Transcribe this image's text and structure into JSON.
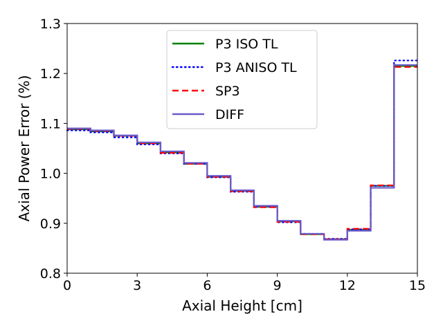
{
  "chart_data": {
    "type": "line",
    "step": true,
    "xlabel": "Axial Height [cm]",
    "ylabel": "Axial Power Error (%)",
    "xlim": [
      0,
      15
    ],
    "ylim": [
      0.8,
      1.3
    ],
    "xticks": [
      0,
      3,
      6,
      9,
      12,
      15
    ],
    "xtick_labels": [
      "0",
      "3",
      "6",
      "9",
      "12",
      "15"
    ],
    "yticks": [
      0.8,
      0.9,
      1.0,
      1.1,
      1.2,
      1.3
    ],
    "ytick_labels": [
      "0.8",
      "0.9",
      "1.0",
      "1.1",
      "1.2",
      "1.3"
    ],
    "grid": false,
    "legend_position": "top-center",
    "x_edges": [
      0,
      1,
      2,
      3,
      4,
      5,
      6,
      7,
      8,
      9,
      10,
      11,
      12,
      13,
      14,
      15
    ],
    "series": [
      {
        "name": "P3 ISO TL",
        "color": "#008000",
        "dash": "solid",
        "values": [
          1.088,
          1.084,
          1.075,
          1.06,
          1.042,
          1.019,
          0.993,
          0.965,
          0.933,
          0.904,
          0.878,
          0.868,
          0.887,
          0.975,
          1.215
        ]
      },
      {
        "name": "P3 ANISO TL",
        "color": "#0000ff",
        "dash": "dotted",
        "values": [
          1.086,
          1.082,
          1.072,
          1.058,
          1.04,
          1.019,
          0.992,
          0.963,
          0.933,
          0.902,
          0.879,
          0.869,
          0.888,
          0.975,
          1.226
        ]
      },
      {
        "name": "SP3",
        "color": "#ff0000",
        "dash": "dashed",
        "values": [
          1.089,
          1.085,
          1.075,
          1.06,
          1.041,
          1.019,
          0.993,
          0.964,
          0.932,
          0.903,
          0.878,
          0.868,
          0.889,
          0.976,
          1.213
        ]
      },
      {
        "name": "DIFF",
        "color": "#6a5acd",
        "dash": "solid",
        "values": [
          1.09,
          1.086,
          1.076,
          1.062,
          1.044,
          1.021,
          0.995,
          0.966,
          0.935,
          0.905,
          0.879,
          0.867,
          0.885,
          0.971,
          1.217
        ]
      }
    ]
  }
}
